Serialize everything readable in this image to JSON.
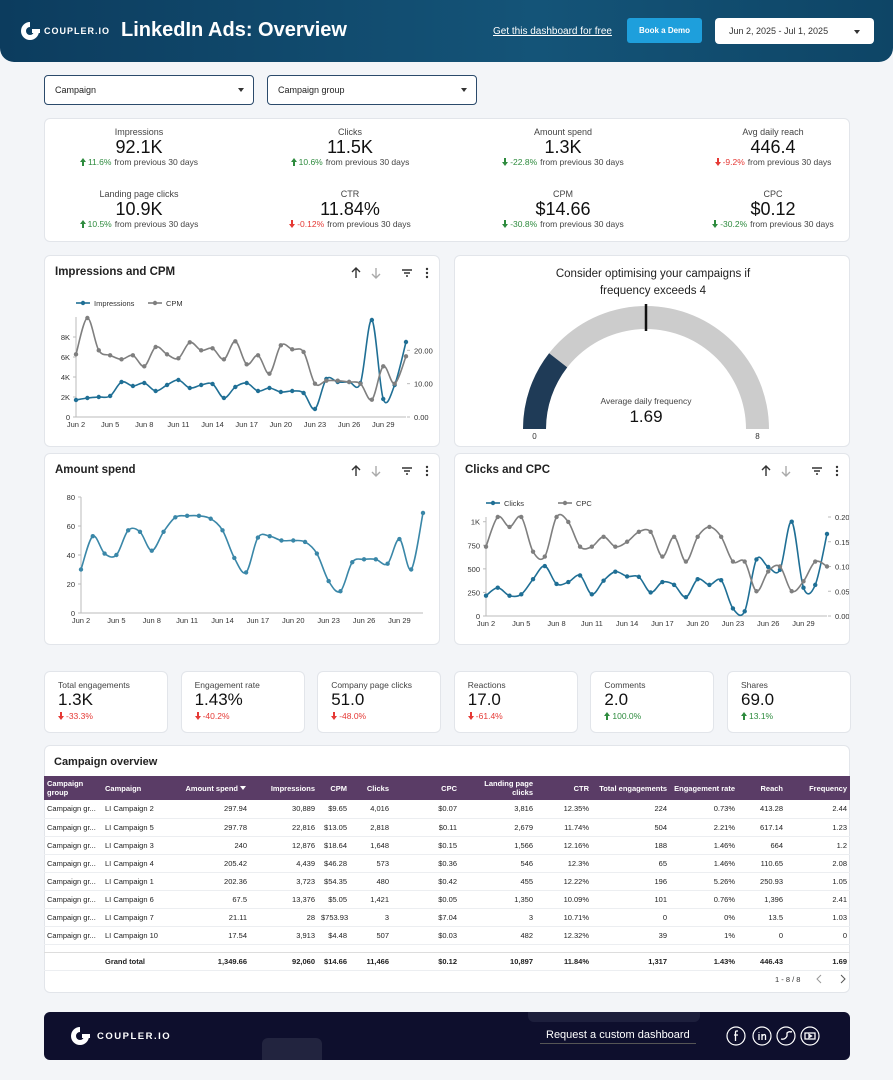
{
  "header": {
    "logo": "COUPLER.IO",
    "title": "LinkedIn Ads: Overview",
    "link": "Get this dashboard for free",
    "button": "Book a Demo",
    "date_range": "Jun 2, 2025 - Jul 1, 2025"
  },
  "filters": [
    "Campaign",
    "Campaign group"
  ],
  "kpi_note": "from previous 30 days",
  "kpis": [
    {
      "label": "Impressions",
      "value": "92.1K",
      "change": "11.6%",
      "color": "#2e8b3e"
    },
    {
      "label": "Clicks",
      "value": "11.5K",
      "change": "10.6%",
      "color": "#2e8b3e"
    },
    {
      "label": "Amount spend",
      "value": "1.3K",
      "change": "-22.8%",
      "color": "#2e8b3e"
    },
    {
      "label": "Avg daily reach",
      "value": "446.4",
      "change": "-9.2%",
      "color": "#e53935"
    },
    {
      "label": "Landing page clicks",
      "value": "10.9K",
      "change": "10.5%",
      "color": "#2e8b3e"
    },
    {
      "label": "CTR",
      "value": "11.84%",
      "change": "-0.12%",
      "color": "#e53935"
    },
    {
      "label": "CPM",
      "value": "$14.66",
      "change": "-30.8%",
      "color": "#2e8b3e"
    },
    {
      "label": "CPC",
      "value": "$0.12",
      "change": "-30.2%",
      "color": "#2e8b3e"
    }
  ],
  "chart_data": [
    {
      "type": "line",
      "title": "Impressions and CPM",
      "legend": "top-left",
      "grid": false,
      "categories": [
        "Jun 2",
        null,
        null,
        "Jun 5",
        null,
        null,
        "Jun 8",
        null,
        null,
        "Jun 11",
        null,
        null,
        "Jun 14",
        null,
        null,
        "Jun 17",
        null,
        null,
        "Jun 20",
        null,
        null,
        "Jun 23",
        null,
        null,
        "Jun 26",
        null,
        null,
        "Jun 29",
        null,
        null
      ],
      "ylim": [
        0,
        10000
      ],
      "yticks": [
        0,
        {
          "value": 2000,
          "label": "2K"
        },
        {
          "value": 4000,
          "label": "4K"
        },
        {
          "value": 6000,
          "label": "6K"
        },
        {
          "value": 8000,
          "label": "8K"
        }
      ],
      "y2lim": [
        0,
        30
      ],
      "y2ticks": [
        {
          "value": 0,
          "label": "0.00"
        },
        {
          "value": 10,
          "label": "10.00"
        },
        {
          "value": 20,
          "label": "20.00"
        }
      ],
      "series": [
        {
          "name": "Impressions",
          "color": "#1f6f95",
          "values": [
            1700,
            1900,
            2000,
            2100,
            3500,
            3100,
            3400,
            2600,
            3200,
            3700,
            2900,
            3200,
            3300,
            1900,
            3000,
            3400,
            2600,
            2900,
            2500,
            2600,
            2400,
            800,
            3800,
            3500,
            3500,
            3400,
            9700,
            1800,
            3200,
            7500
          ]
        },
        {
          "name": "CPM",
          "color": "#7f7f7f",
          "axis": "y2",
          "values": [
            18.8,
            29.7,
            20,
            18.5,
            17.3,
            18.5,
            15.2,
            21,
            18.8,
            17.6,
            22.4,
            20,
            20.6,
            17.3,
            22.7,
            15.8,
            18.5,
            13,
            21.5,
            20.3,
            19.5,
            10,
            10.9,
            10.9,
            10.5,
            10,
            5.2,
            15.2,
            10,
            18.2
          ]
        }
      ]
    },
    {
      "type": "line",
      "title": "Amount spend",
      "grid": false,
      "color": "#3a87a8",
      "categories": [
        "Jun 2",
        null,
        null,
        "Jun 5",
        null,
        null,
        "Jun 8",
        null,
        null,
        "Jun 11",
        null,
        null,
        "Jun 14",
        null,
        null,
        "Jun 17",
        null,
        null,
        "Jun 20",
        null,
        null,
        "Jun 23",
        null,
        null,
        "Jun 26",
        null,
        null,
        "Jun 29",
        null,
        null
      ],
      "ylim": [
        0,
        80
      ],
      "yticks": [
        0,
        20,
        40,
        60,
        80
      ],
      "values": [
        30,
        53,
        41,
        40,
        57,
        56,
        43,
        56,
        66,
        67,
        67,
        65,
        57,
        38,
        28,
        52,
        53,
        50,
        50,
        49,
        41,
        22,
        15,
        35,
        37,
        37,
        34,
        51,
        30,
        69
      ]
    },
    {
      "type": "line",
      "title": "Clicks and CPC",
      "legend": "top-left",
      "grid": false,
      "categories": [
        "Jun 2",
        null,
        null,
        "Jun 5",
        null,
        null,
        "Jun 8",
        null,
        null,
        "Jun 11",
        null,
        null,
        "Jun 14",
        null,
        null,
        "Jun 17",
        null,
        null,
        "Jun 20",
        null,
        null,
        "Jun 23",
        null,
        null,
        "Jun 26",
        null,
        null,
        "Jun 29",
        null,
        null
      ],
      "ylim": [
        0,
        1050
      ],
      "yticks": [
        0,
        250,
        500,
        750,
        {
          "value": 1000,
          "label": "1K"
        }
      ],
      "y2lim": [
        0,
        0.2
      ],
      "y2ticks": [
        {
          "value": 0,
          "label": "0.00"
        },
        {
          "value": 0.05,
          "label": "0.05"
        },
        {
          "value": 0.1,
          "label": "0.10"
        },
        {
          "value": 0.15,
          "label": "0.15"
        },
        {
          "value": 0.2,
          "label": "0.20"
        }
      ],
      "series": [
        {
          "name": "Clicks",
          "color": "#1f6f95",
          "values": [
            215,
            300,
            215,
            230,
            390,
            530,
            340,
            360,
            430,
            230,
            375,
            470,
            420,
            415,
            250,
            360,
            330,
            200,
            390,
            330,
            380,
            80,
            50,
            600,
            520,
            490,
            1000,
            300,
            330,
            870
          ]
        },
        {
          "name": "CPC",
          "color": "#7f7f7f",
          "axis": "y2",
          "values": [
            0.14,
            0.2,
            0.18,
            0.2,
            0.13,
            0.12,
            0.2,
            0.19,
            0.14,
            0.14,
            0.16,
            0.14,
            0.15,
            0.17,
            0.17,
            0.12,
            0.16,
            0.11,
            0.16,
            0.18,
            0.16,
            0.11,
            0.11,
            0.05,
            0.09,
            0.1,
            0.05,
            0.07,
            0.11,
            0.1
          ]
        }
      ]
    },
    {
      "type": "gauge",
      "title": "Consider optimising your campaigns if frequency exceeds 4",
      "label": "Average daily frequency",
      "value": 1.69,
      "min": 0,
      "max": 8,
      "target": 4,
      "color": "#1f3b57",
      "track_color": "#cccccc"
    }
  ],
  "engagement": [
    {
      "label": "Total engagements",
      "value": "1.3K",
      "change": "-33.3%",
      "color": "#e53935"
    },
    {
      "label": "Engagement rate",
      "value": "1.43%",
      "change": "-40.2%",
      "color": "#e53935"
    },
    {
      "label": "Company page clicks",
      "value": "51.0",
      "change": "-48.0%",
      "color": "#e53935"
    },
    {
      "label": "Reactions",
      "value": "17.0",
      "change": "-61.4%",
      "color": "#e53935"
    },
    {
      "label": "Comments",
      "value": "2.0",
      "change": "100.0%",
      "color": "#2e8b3e"
    },
    {
      "label": "Shares",
      "value": "69.0",
      "change": "13.1%",
      "color": "#2e8b3e"
    }
  ],
  "table": {
    "title": "Campaign overview",
    "columns": [
      {
        "name": "Campaign group",
        "align": "left"
      },
      {
        "name": "Campaign",
        "align": "left"
      },
      {
        "name": "Amount spend",
        "align": "right",
        "sorted": true
      },
      {
        "name": "Impressions",
        "align": "right"
      },
      {
        "name": "CPM",
        "align": "right"
      },
      {
        "name": "Clicks",
        "align": "right"
      },
      {
        "name": "CPC",
        "align": "right"
      },
      {
        "name": "Landing page clicks",
        "align": "right"
      },
      {
        "name": "CTR",
        "align": "right"
      },
      {
        "name": "Total engagements",
        "align": "right"
      },
      {
        "name": "Engagement rate",
        "align": "right"
      },
      {
        "name": "Reach",
        "align": "right"
      },
      {
        "name": "Frequency",
        "align": "right"
      }
    ],
    "rows": [
      [
        "Campaign gr...",
        "LI Campaign 2",
        "297.94",
        "30,889",
        "$9.65",
        "4,016",
        "$0.07",
        "3,816",
        "12.35%",
        "224",
        "0.73%",
        "413.28",
        "2.44"
      ],
      [
        "Campaign gr...",
        "LI Campaign 5",
        "297.78",
        "22,816",
        "$13.05",
        "2,818",
        "$0.11",
        "2,679",
        "11.74%",
        "504",
        "2.21%",
        "617.14",
        "1.23"
      ],
      [
        "Campaign gr...",
        "LI Campaign 3",
        "240",
        "12,876",
        "$18.64",
        "1,648",
        "$0.15",
        "1,566",
        "12.16%",
        "188",
        "1.46%",
        "664",
        "1.2"
      ],
      [
        "Campaign gr...",
        "LI Campaign 4",
        "205.42",
        "4,439",
        "$46.28",
        "573",
        "$0.36",
        "546",
        "12.3%",
        "65",
        "1.46%",
        "110.65",
        "2.08"
      ],
      [
        "Campaign gr...",
        "LI Campaign 1",
        "202.36",
        "3,723",
        "$54.35",
        "480",
        "$0.42",
        "455",
        "12.22%",
        "196",
        "5.26%",
        "250.93",
        "1.05"
      ],
      [
        "Campaign gr...",
        "LI Campaign 6",
        "67.5",
        "13,376",
        "$5.05",
        "1,421",
        "$0.05",
        "1,350",
        "10.09%",
        "101",
        "0.76%",
        "1,396",
        "2.41"
      ],
      [
        "Campaign gr...",
        "LI Campaign 7",
        "21.11",
        "28",
        "$753.93",
        "3",
        "$7.04",
        "3",
        "10.71%",
        "0",
        "0%",
        "13.5",
        "1.03"
      ],
      [
        "Campaign gr...",
        "LI Campaign 10",
        "17.54",
        "3,913",
        "$4.48",
        "507",
        "$0.03",
        "482",
        "12.32%",
        "39",
        "1%",
        "0",
        "0"
      ]
    ],
    "total": [
      null,
      "Grand total",
      "1,349.66",
      "92,060",
      "$14.66",
      "11,466",
      "$0.12",
      "10,897",
      "11.84%",
      "1,317",
      "1.43%",
      "446.43",
      "1.69"
    ],
    "pagination": "1 - 8 / 8"
  },
  "footer": {
    "logo": "COUPLER.IO",
    "cta": "Request a custom dashboard"
  }
}
